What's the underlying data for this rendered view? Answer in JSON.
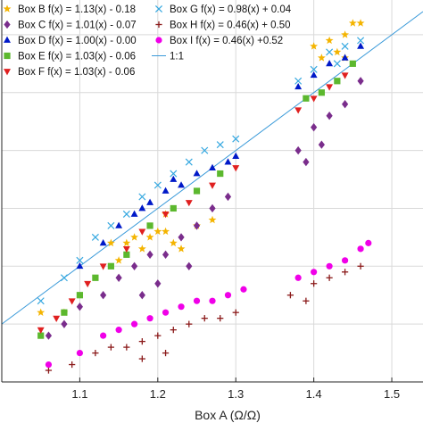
{
  "chart_data": {
    "type": "scatter",
    "xlabel": "Box A (Ω/Ω)",
    "ylabel": "",
    "xlim": [
      1.0,
      1.54
    ],
    "ylim": [
      0.9,
      1.56
    ],
    "xticks": [
      "1.1",
      "1.2",
      "1.3",
      "1.4",
      "1.5"
    ],
    "xtick_values": [
      1.1,
      1.2,
      1.3,
      1.4,
      1.5
    ],
    "yticks": [
      1.0,
      1.1,
      1.2,
      1.3,
      1.4,
      1.5
    ],
    "grid": true,
    "legend_placement": "top-left",
    "reference_line": {
      "label": "1:1",
      "slope": 1,
      "intercept": 0,
      "color": "#3a9ad9"
    },
    "series": [
      {
        "label": "Box B f(x) = 1.13(x) - 0.18",
        "marker": "star",
        "color": "#f4b400",
        "points": [
          [
            1.05,
            1.02
          ],
          [
            1.08,
            1.02
          ],
          [
            1.14,
            1.14
          ],
          [
            1.16,
            1.14
          ],
          [
            1.17,
            1.15
          ],
          [
            1.18,
            1.13
          ],
          [
            1.19,
            1.15
          ],
          [
            1.2,
            1.16
          ],
          [
            1.21,
            1.16
          ],
          [
            1.22,
            1.14
          ],
          [
            1.23,
            1.13
          ],
          [
            1.25,
            1.17
          ],
          [
            1.27,
            1.18
          ],
          [
            1.15,
            1.11
          ],
          [
            1.21,
            1.19
          ],
          [
            1.4,
            1.48
          ],
          [
            1.42,
            1.49
          ],
          [
            1.43,
            1.47
          ],
          [
            1.44,
            1.5
          ],
          [
            1.45,
            1.52
          ],
          [
            1.46,
            1.52
          ],
          [
            1.41,
            1.46
          ],
          [
            1.44,
            1.46
          ]
        ]
      },
      {
        "label": "Box C f(x) = 1.01(x) - 0.07",
        "marker": "diamond",
        "color": "#7a2d8c",
        "points": [
          [
            1.06,
            0.98
          ],
          [
            1.08,
            1.0
          ],
          [
            1.1,
            1.03
          ],
          [
            1.13,
            1.05
          ],
          [
            1.15,
            1.08
          ],
          [
            1.17,
            1.1
          ],
          [
            1.19,
            1.12
          ],
          [
            1.21,
            1.12
          ],
          [
            1.23,
            1.15
          ],
          [
            1.25,
            1.17
          ],
          [
            1.27,
            1.2
          ],
          [
            1.29,
            1.22
          ],
          [
            1.2,
            1.07
          ],
          [
            1.24,
            1.1
          ],
          [
            1.18,
            1.05
          ],
          [
            1.38,
            1.3
          ],
          [
            1.4,
            1.34
          ],
          [
            1.42,
            1.36
          ],
          [
            1.44,
            1.38
          ],
          [
            1.46,
            1.42
          ],
          [
            1.39,
            1.28
          ],
          [
            1.41,
            1.31
          ]
        ]
      },
      {
        "label": "Box D f(x) = 1.00(x) - 0.00",
        "marker": "triangle",
        "color": "#0019c8",
        "points": [
          [
            1.1,
            1.1
          ],
          [
            1.13,
            1.14
          ],
          [
            1.15,
            1.17
          ],
          [
            1.17,
            1.19
          ],
          [
            1.19,
            1.21
          ],
          [
            1.21,
            1.23
          ],
          [
            1.23,
            1.24
          ],
          [
            1.25,
            1.26
          ],
          [
            1.27,
            1.27
          ],
          [
            1.29,
            1.28
          ],
          [
            1.3,
            1.29
          ],
          [
            1.18,
            1.2
          ],
          [
            1.22,
            1.25
          ],
          [
            1.38,
            1.41
          ],
          [
            1.4,
            1.43
          ],
          [
            1.42,
            1.45
          ],
          [
            1.44,
            1.46
          ],
          [
            1.46,
            1.48
          ]
        ]
      },
      {
        "label": "Box E f(x) = 1.03(x) - 0.06",
        "marker": "square",
        "color": "#5cb82e",
        "points": [
          [
            1.05,
            0.98
          ],
          [
            1.08,
            1.02
          ],
          [
            1.1,
            1.05
          ],
          [
            1.12,
            1.08
          ],
          [
            1.14,
            1.1
          ],
          [
            1.16,
            1.12
          ],
          [
            1.19,
            1.17
          ],
          [
            1.22,
            1.2
          ],
          [
            1.25,
            1.23
          ],
          [
            1.28,
            1.26
          ],
          [
            1.39,
            1.39
          ],
          [
            1.41,
            1.4
          ],
          [
            1.43,
            1.42
          ],
          [
            1.45,
            1.45
          ]
        ]
      },
      {
        "label": "Box F f(x) = 1.03(x) - 0.06",
        "marker": "triangle-down",
        "color": "#e02020",
        "points": [
          [
            1.05,
            0.99
          ],
          [
            1.07,
            1.01
          ],
          [
            1.09,
            1.04
          ],
          [
            1.11,
            1.07
          ],
          [
            1.13,
            1.1
          ],
          [
            1.16,
            1.13
          ],
          [
            1.18,
            1.16
          ],
          [
            1.21,
            1.19
          ],
          [
            1.24,
            1.21
          ],
          [
            1.27,
            1.24
          ],
          [
            1.3,
            1.27
          ],
          [
            1.38,
            1.37
          ],
          [
            1.4,
            1.39
          ],
          [
            1.42,
            1.41
          ],
          [
            1.44,
            1.43
          ]
        ]
      },
      {
        "label": "Box G f(x) = 0.98(x) + 0.04",
        "marker": "x",
        "color": "#36a8e0",
        "points": [
          [
            1.05,
            1.04
          ],
          [
            1.08,
            1.08
          ],
          [
            1.1,
            1.11
          ],
          [
            1.12,
            1.15
          ],
          [
            1.14,
            1.17
          ],
          [
            1.16,
            1.19
          ],
          [
            1.18,
            1.22
          ],
          [
            1.2,
            1.24
          ],
          [
            1.22,
            1.26
          ],
          [
            1.24,
            1.28
          ],
          [
            1.26,
            1.3
          ],
          [
            1.28,
            1.31
          ],
          [
            1.3,
            1.32
          ],
          [
            1.38,
            1.42
          ],
          [
            1.4,
            1.44
          ],
          [
            1.42,
            1.47
          ],
          [
            1.44,
            1.48
          ],
          [
            1.46,
            1.49
          ],
          [
            1.43,
            1.45
          ]
        ]
      },
      {
        "label": "Box H f(x) = 0.46(x) + 0.50",
        "marker": "plus",
        "color": "#8b1a1a",
        "points": [
          [
            1.06,
            0.92
          ],
          [
            1.09,
            0.93
          ],
          [
            1.12,
            0.95
          ],
          [
            1.14,
            0.96
          ],
          [
            1.16,
            0.96
          ],
          [
            1.18,
            0.97
          ],
          [
            1.2,
            0.98
          ],
          [
            1.22,
            0.99
          ],
          [
            1.24,
            1.0
          ],
          [
            1.26,
            1.01
          ],
          [
            1.28,
            1.01
          ],
          [
            1.3,
            1.02
          ],
          [
            1.21,
            0.95
          ],
          [
            1.18,
            0.94
          ],
          [
            1.37,
            1.05
          ],
          [
            1.4,
            1.07
          ],
          [
            1.42,
            1.08
          ],
          [
            1.44,
            1.09
          ],
          [
            1.46,
            1.1
          ],
          [
            1.39,
            1.04
          ]
        ]
      },
      {
        "label": "Box I f(x) = 0.46(x) +0.52",
        "marker": "circle",
        "color": "#f000e8",
        "points": [
          [
            1.06,
            0.93
          ],
          [
            1.1,
            0.95
          ],
          [
            1.13,
            0.98
          ],
          [
            1.15,
            0.99
          ],
          [
            1.17,
            1.0
          ],
          [
            1.19,
            1.01
          ],
          [
            1.21,
            1.02
          ],
          [
            1.23,
            1.03
          ],
          [
            1.25,
            1.04
          ],
          [
            1.27,
            1.04
          ],
          [
            1.29,
            1.05
          ],
          [
            1.31,
            1.06
          ],
          [
            1.38,
            1.08
          ],
          [
            1.4,
            1.09
          ],
          [
            1.42,
            1.1
          ],
          [
            1.44,
            1.11
          ],
          [
            1.46,
            1.13
          ],
          [
            1.47,
            1.14
          ]
        ]
      }
    ]
  }
}
